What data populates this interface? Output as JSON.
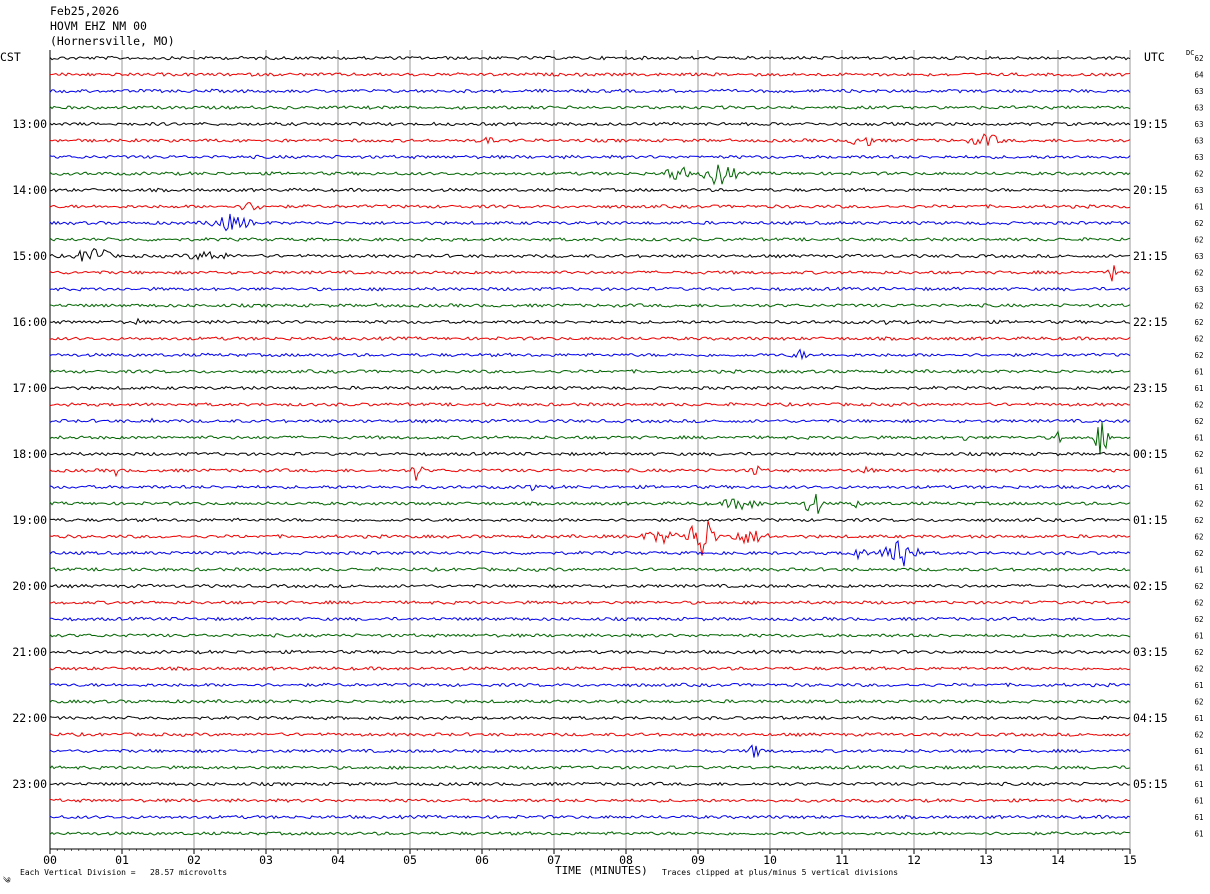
{
  "header": {
    "date": "Feb25,2026",
    "station": "HOVM EHZ NM 00",
    "location": "(Hornersville, MO)"
  },
  "left_axis_label": "CST",
  "right_axis_label": "UTC",
  "dc_label": "DC",
  "footer": {
    "corner_mark": "༄",
    "division_note": "Each Vertical Division =   28.57 microvolts",
    "x_title": "TIME (MINUTES)",
    "clip_note": "Traces clipped at plus/minus 5 vertical divisions"
  },
  "colors": {
    "cycle": [
      "#000000",
      "#ee0000",
      "#0000ee",
      "#006400"
    ],
    "grid": "#808080"
  },
  "chart_data": {
    "type": "line",
    "title": "HOVM EHZ NM 00",
    "xlabel": "TIME (MINUTES)",
    "xlim": [
      0,
      15
    ],
    "x_ticks": [
      "00",
      "01",
      "02",
      "03",
      "04",
      "05",
      "06",
      "07",
      "08",
      "09",
      "10",
      "11",
      "12",
      "13",
      "14",
      "15"
    ],
    "rows_per_hour": 4,
    "row_minutes": 15,
    "left_hour_labels": [
      "13:00",
      "14:00",
      "15:00",
      "16:00",
      "17:00",
      "18:00",
      "19:00",
      "20:00",
      "21:00",
      "22:00",
      "23:00"
    ],
    "right_hour_labels": [
      "19:15",
      "20:15",
      "21:15",
      "22:15",
      "23:15",
      "00:15",
      "01:15",
      "02:15",
      "03:15",
      "04:15",
      "05:15"
    ],
    "dc_offsets": [
      62,
      64,
      63,
      63,
      63,
      63,
      63,
      62,
      63,
      61,
      62,
      62,
      63,
      62,
      63,
      62,
      62,
      62,
      62,
      61,
      61,
      62,
      62,
      61,
      62,
      61,
      61,
      62,
      62,
      62,
      62,
      61,
      62,
      62,
      62,
      61,
      62,
      62,
      61,
      62,
      61,
      62,
      61,
      61,
      61,
      61,
      61,
      61
    ],
    "events": [
      {
        "row": 5,
        "minute": 6.1,
        "amp": 0.25,
        "dur": 0.1
      },
      {
        "row": 5,
        "minute": 11.3,
        "amp": 0.35,
        "dur": 0.25
      },
      {
        "row": 5,
        "minute": 13.0,
        "amp": 0.35,
        "dur": 0.3
      },
      {
        "row": 7,
        "minute": 8.7,
        "amp": 0.6,
        "dur": 0.2
      },
      {
        "row": 7,
        "minute": 9.3,
        "amp": 0.75,
        "dur": 0.3
      },
      {
        "row": 9,
        "minute": 2.8,
        "amp": 0.25,
        "dur": 0.25
      },
      {
        "row": 10,
        "minute": 2.5,
        "amp": 0.45,
        "dur": 0.4
      },
      {
        "row": 12,
        "minute": 0.6,
        "amp": 0.6,
        "dur": 0.3
      },
      {
        "row": 12,
        "minute": 2.2,
        "amp": 0.25,
        "dur": 0.4
      },
      {
        "row": 13,
        "minute": 14.75,
        "amp": 0.65,
        "dur": 0.06
      },
      {
        "row": 15,
        "minute": 4.6,
        "amp": 0.25,
        "dur": 0.08
      },
      {
        "row": 16,
        "minute": 1.2,
        "amp": 0.2,
        "dur": 0.06
      },
      {
        "row": 16,
        "minute": 11.6,
        "amp": 0.2,
        "dur": 0.06
      },
      {
        "row": 18,
        "minute": 10.4,
        "amp": 0.3,
        "dur": 0.15
      },
      {
        "row": 22,
        "minute": 1.4,
        "amp": 0.45,
        "dur": 0.05
      },
      {
        "row": 23,
        "minute": 12.7,
        "amp": 0.2,
        "dur": 0.05
      },
      {
        "row": 23,
        "minute": 14.0,
        "amp": 0.55,
        "dur": 0.05
      },
      {
        "row": 23,
        "minute": 14.6,
        "amp": 1.25,
        "dur": 0.12
      },
      {
        "row": 25,
        "minute": 0.9,
        "amp": 0.4,
        "dur": 0.05
      },
      {
        "row": 25,
        "minute": 5.1,
        "amp": 0.65,
        "dur": 0.1
      },
      {
        "row": 25,
        "minute": 9.8,
        "amp": 0.35,
        "dur": 0.1
      },
      {
        "row": 25,
        "minute": 11.3,
        "amp": 0.2,
        "dur": 0.15
      },
      {
        "row": 26,
        "minute": 6.7,
        "amp": 0.3,
        "dur": 0.1
      },
      {
        "row": 27,
        "minute": 9.6,
        "amp": 0.35,
        "dur": 0.35
      },
      {
        "row": 27,
        "minute": 10.6,
        "amp": 1.0,
        "dur": 0.15
      },
      {
        "row": 27,
        "minute": 11.2,
        "amp": 0.3,
        "dur": 0.08
      },
      {
        "row": 29,
        "minute": 8.5,
        "amp": 0.35,
        "dur": 0.4
      },
      {
        "row": 29,
        "minute": 9.05,
        "amp": 1.5,
        "dur": 0.25
      },
      {
        "row": 29,
        "minute": 9.7,
        "amp": 0.4,
        "dur": 0.4
      },
      {
        "row": 30,
        "minute": 11.2,
        "amp": 0.3,
        "dur": 0.2
      },
      {
        "row": 30,
        "minute": 11.8,
        "amp": 1.25,
        "dur": 0.3
      },
      {
        "row": 42,
        "minute": 9.8,
        "amp": 0.4,
        "dur": 0.15
      }
    ]
  }
}
